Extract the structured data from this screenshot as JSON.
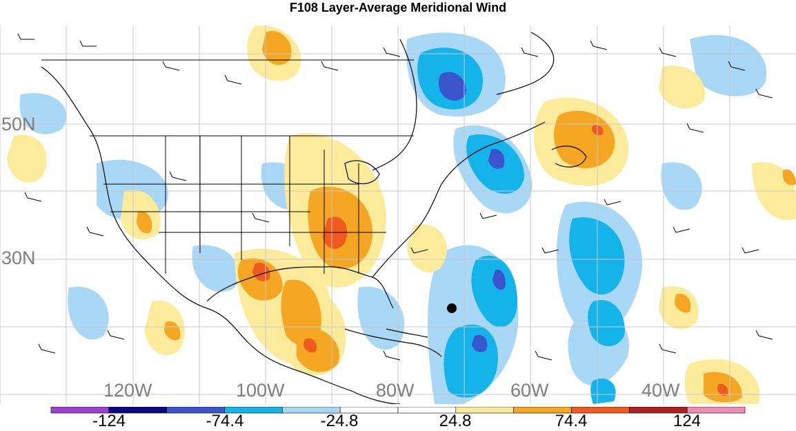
{
  "title": "F108 Layer-Average Meridional Wind",
  "lat_labels": [
    "50N",
    "30N"
  ],
  "lon_labels": [
    "120W",
    "100W",
    "80W",
    "60W",
    "40W"
  ],
  "colorbar": {
    "colors": [
      "#9b3fcf",
      "#0a0a82",
      "#3a55cc",
      "#14b4ea",
      "#a8d8f5",
      "#ffffff",
      "#ffffff",
      "#fdeb9c",
      "#f5a623",
      "#f05a1e",
      "#b02020",
      "#f08cb4"
    ],
    "labels": [
      "-124",
      "-74.4",
      "-24.8",
      "24.8",
      "74.4",
      "124"
    ]
  },
  "map_layers": {
    "contours": "shaded meridional wind anomaly",
    "overlays": [
      "coastlines",
      "state-borders",
      "country-borders",
      "wind-barbs",
      "grid-lines"
    ],
    "marker": "black-dot"
  }
}
